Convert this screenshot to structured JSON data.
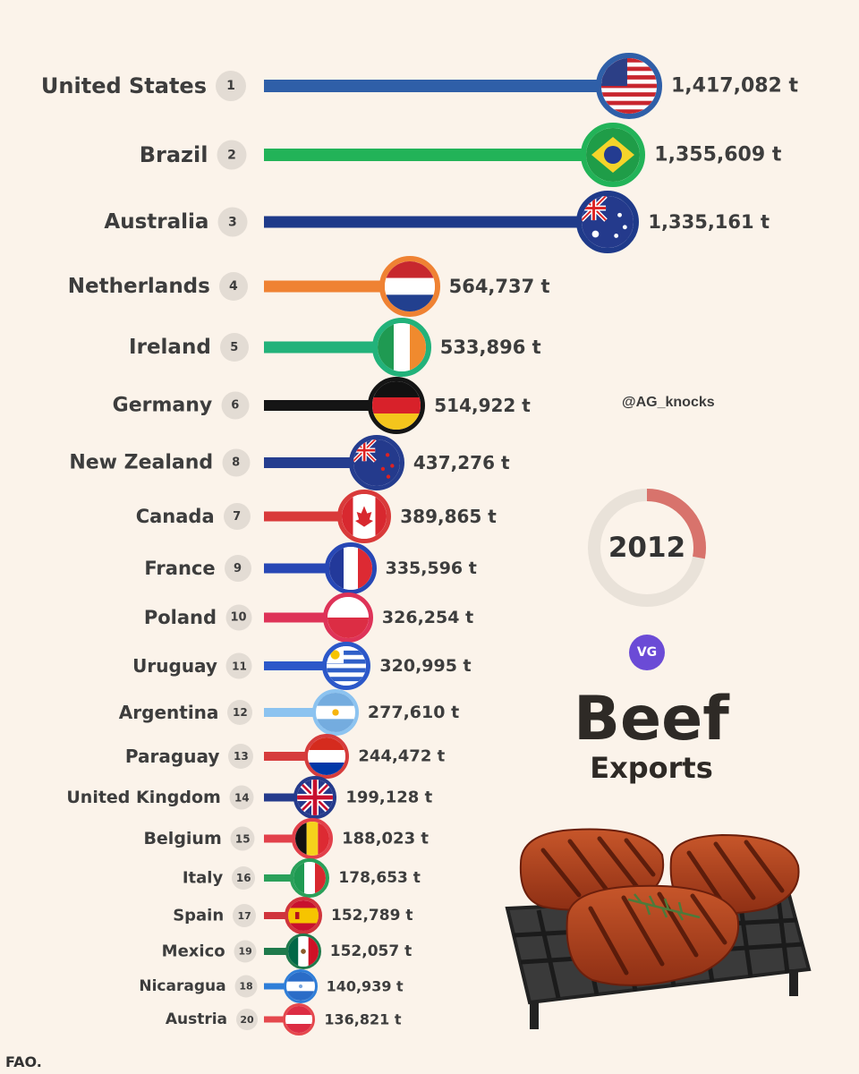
{
  "watermark": "@AG_knocks",
  "year": "2012",
  "logo_text": "VG",
  "title": "Beef",
  "subtitle": "Exports",
  "source": "FAO.",
  "year_progress": 0.28,
  "chart_data": {
    "type": "bar",
    "orientation": "horizontal",
    "title": "Beef Exports",
    "unit": "t",
    "rows": [
      {
        "country": "United States",
        "rank": "1",
        "value": 1417082,
        "label": "1,417,082 t",
        "color": "#2f5fa8",
        "flag": "us"
      },
      {
        "country": "Brazil",
        "rank": "2",
        "value": 1355609,
        "label": "1,355,609 t",
        "color": "#22b358",
        "flag": "br"
      },
      {
        "country": "Australia",
        "rank": "3",
        "value": 1335161,
        "label": "1,335,161 t",
        "color": "#1f3a8a",
        "flag": "au"
      },
      {
        "country": "Netherlands",
        "rank": "4",
        "value": 564737,
        "label": "564,737 t",
        "color": "#ef8233",
        "flag": "nl"
      },
      {
        "country": "Ireland",
        "rank": "5",
        "value": 533896,
        "label": "533,896 t",
        "color": "#22b27a",
        "flag": "ie"
      },
      {
        "country": "Germany",
        "rank": "6",
        "value": 514922,
        "label": "514,922 t",
        "color": "#151515",
        "flag": "de"
      },
      {
        "country": "New Zealand",
        "rank": "8",
        "value": 437276,
        "label": "437,276 t",
        "color": "#253d8f",
        "flag": "nz"
      },
      {
        "country": "Canada",
        "rank": "7",
        "value": 389865,
        "label": "389,865 t",
        "color": "#d93a3a",
        "flag": "ca"
      },
      {
        "country": "France",
        "rank": "9",
        "value": 335596,
        "label": "335,596 t",
        "color": "#2747b5",
        "flag": "fr"
      },
      {
        "country": "Poland",
        "rank": "10",
        "value": 326254,
        "label": "326,254 t",
        "color": "#de3358",
        "flag": "pl"
      },
      {
        "country": "Uruguay",
        "rank": "11",
        "value": 320995,
        "label": "320,995 t",
        "color": "#2c58c9",
        "flag": "uy"
      },
      {
        "country": "Argentina",
        "rank": "12",
        "value": 277610,
        "label": "277,610 t",
        "color": "#8cc3f0",
        "flag": "ar"
      },
      {
        "country": "Paraguay",
        "rank": "13",
        "value": 244472,
        "label": "244,472 t",
        "color": "#d63c3c",
        "flag": "py"
      },
      {
        "country": "United Kingdom",
        "rank": "14",
        "value": 199128,
        "label": "199,128 t",
        "color": "#253b8c",
        "flag": "gb"
      },
      {
        "country": "Belgium",
        "rank": "15",
        "value": 188023,
        "label": "188,023 t",
        "color": "#e2404a",
        "flag": "be"
      },
      {
        "country": "Italy",
        "rank": "16",
        "value": 178653,
        "label": "178,653 t",
        "color": "#2aa05a",
        "flag": "it"
      },
      {
        "country": "Spain",
        "rank": "17",
        "value": 152789,
        "label": "152,789 t",
        "color": "#d0343c",
        "flag": "es"
      },
      {
        "country": "Mexico",
        "rank": "19",
        "value": 152057,
        "label": "152,057 t",
        "color": "#1f7a4c",
        "flag": "mx"
      },
      {
        "country": "Nicaragua",
        "rank": "18",
        "value": 140939,
        "label": "140,939 t",
        "color": "#2f7ed8",
        "flag": "ni"
      },
      {
        "country": "Austria",
        "rank": "20",
        "value": 136821,
        "label": "136,821 t",
        "color": "#e5484d",
        "flag": "at"
      }
    ]
  }
}
